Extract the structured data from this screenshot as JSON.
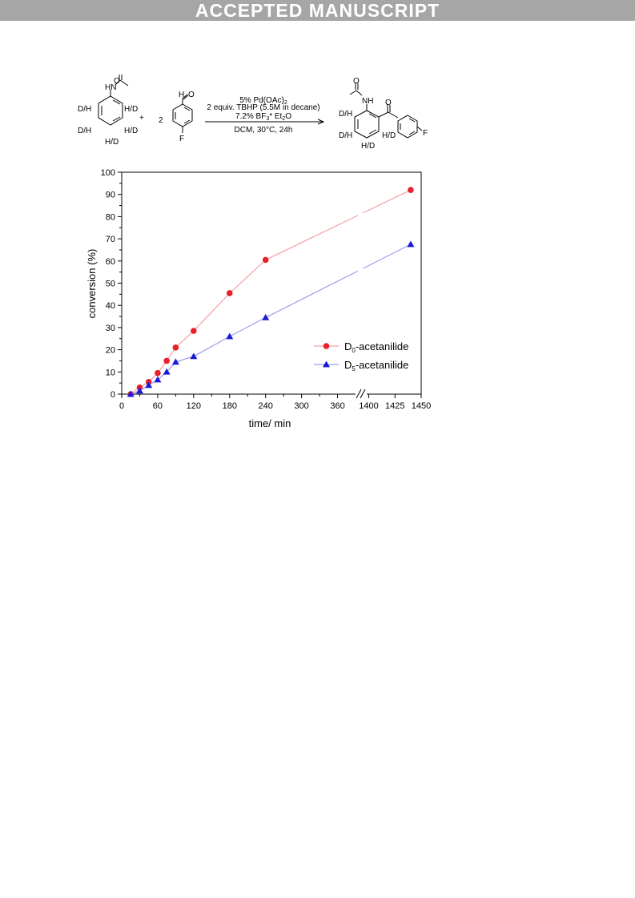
{
  "banner": {
    "text": "ACCEPTED MANUSCRIPT"
  },
  "scheme": {
    "reactant1": {
      "substituent": "HN",
      "ring_labels": [
        "D/H",
        "H/D",
        "D/H",
        "H/D",
        "H/D"
      ]
    },
    "plus": "+",
    "equiv": "2",
    "reactant2": {
      "aldehyde_h": "H",
      "aldehyde_o": "O",
      "para": "F"
    },
    "conditions": {
      "line1": "5% Pd(OAc)",
      "line1_sub": "2",
      "line2": "2 equiv. TBHP (5.5M in decane)",
      "line3a": "7.2% BF",
      "line3_sub1": "3",
      "line3b": "* Et",
      "line3_sub2": "2",
      "line3c": "O",
      "line4": "DCM, 30°C, 24h"
    },
    "product": {
      "nh": "NH",
      "carbonyl_o": "O",
      "acetyl_o": "O",
      "ring_labels": [
        "D/H",
        "D/H",
        "H/D",
        "H/D"
      ],
      "para": "F"
    }
  },
  "chart_data": {
    "type": "scatter",
    "title": "",
    "xlabel": "time/ min",
    "ylabel": "conversion (%)",
    "ylim": [
      0,
      100
    ],
    "y_ticks": [
      "0",
      "10",
      "20",
      "30",
      "40",
      "50",
      "60",
      "70",
      "80",
      "90",
      "100"
    ],
    "x_ticks": [
      "0",
      "60",
      "120",
      "180",
      "240",
      "300",
      "360",
      "1400",
      "1425",
      "1450"
    ],
    "x_axis_break": "between 390 and 1395",
    "legend_position": "center-right",
    "series": [
      {
        "name": "D",
        "name_sub": "0",
        "name_suffix": "-acetanilide",
        "color": "#e8202a",
        "line_color": "#f4a0a4",
        "marker": "circle",
        "x": [
          15,
          30,
          45,
          60,
          75,
          90,
          120,
          180,
          240,
          1440
        ],
        "y": [
          0,
          3,
          5.5,
          9.5,
          15,
          21,
          28.5,
          45.5,
          60.5,
          92
        ]
      },
      {
        "name": "D",
        "name_sub": "5",
        "name_suffix": "-acetanilide",
        "color": "#1a1adb",
        "line_color": "#9c9cf0",
        "marker": "triangle",
        "x": [
          15,
          30,
          45,
          60,
          75,
          90,
          120,
          180,
          240,
          1440
        ],
        "y": [
          0,
          1.5,
          4,
          6.5,
          10,
          14.5,
          17,
          26,
          34.5,
          67.5
        ]
      }
    ]
  }
}
